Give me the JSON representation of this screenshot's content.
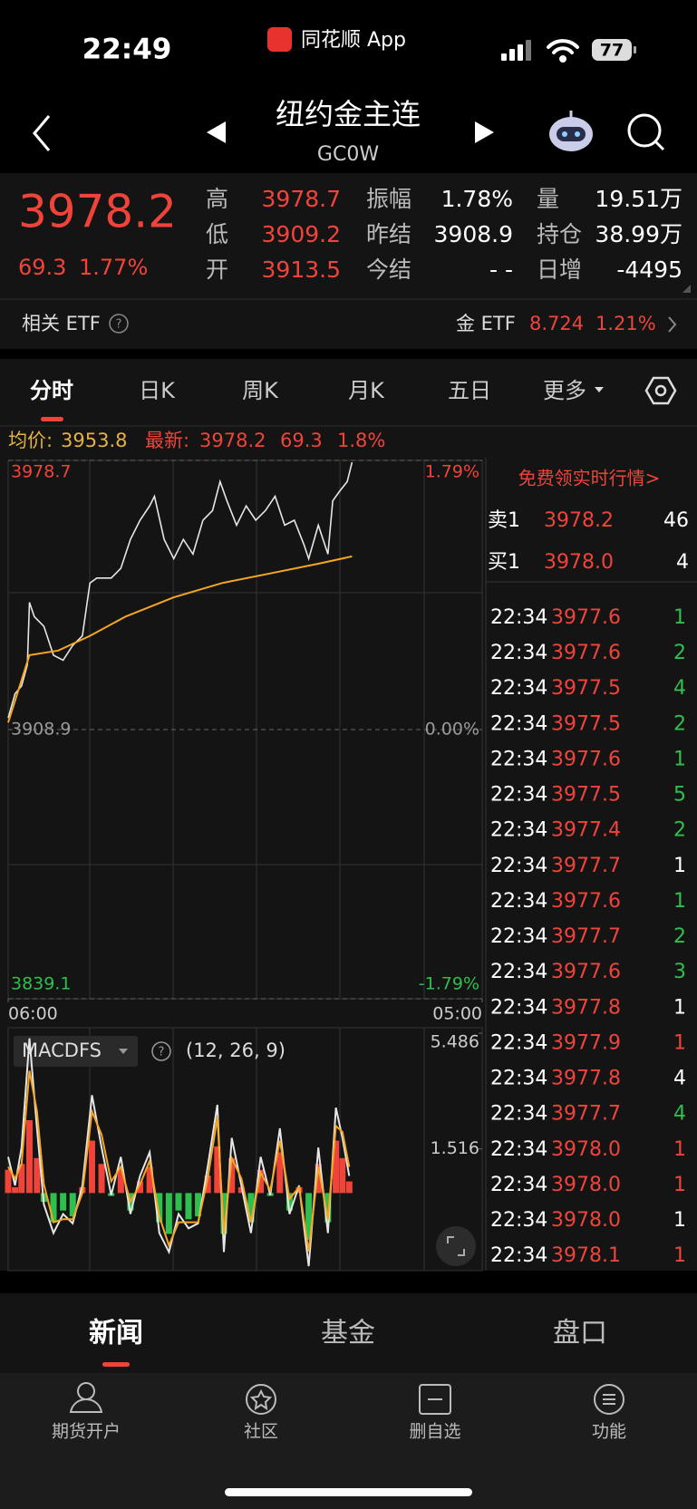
{
  "status_bar": {
    "time": "22:49",
    "app": "同花顺 App",
    "battery": "77"
  },
  "header": {
    "title": "纽约金主连",
    "code": "GC0W"
  },
  "quote": {
    "price": "3978.2",
    "change": "69.3",
    "change_pct": "1.77%",
    "stats": [
      [
        {
          "label": "高",
          "value": "3978.7"
        },
        {
          "label": "振幅",
          "value": "1.78%"
        },
        {
          "label": "量",
          "value": "19.51万"
        }
      ],
      [
        {
          "label": "低",
          "value": "3909.2"
        },
        {
          "label": "昨结",
          "value": "3908.9"
        },
        {
          "label": "持仓",
          "value": "38.99万"
        }
      ],
      [
        {
          "label": "开",
          "value": "3913.5"
        },
        {
          "label": "今结",
          "value": "- -"
        },
        {
          "label": "日增",
          "value": "-4495"
        }
      ]
    ]
  },
  "etf": {
    "label": "相关 ETF",
    "name": "金 ETF",
    "price": "8.724",
    "change_pct": "1.21%"
  },
  "tabs": [
    "分时",
    "日K",
    "周K",
    "月K",
    "五日",
    "更多"
  ],
  "summary": {
    "avg_label": "均价:",
    "avg": "3953.8",
    "latest_label": "最新:",
    "latest": "3978.2",
    "change": "69.3",
    "change_pct": "1.8%"
  },
  "chart_data": [
    {
      "type": "line",
      "xlim": [
        0,
        1380
      ],
      "xticks": [
        {
          "value": 0,
          "label": "06:00"
        },
        {
          "value": 1380,
          "label": "05:00"
        }
      ],
      "ylim": [
        3839.1,
        3978.7
      ],
      "yticks": [
        3839.1,
        3908.9,
        3978.7
      ],
      "y2lim": [
        -1.79,
        1.79
      ],
      "y2ticks": [
        {
          "value": -1.79,
          "label": "-1.79%"
        },
        {
          "value": 0,
          "label": "0.00%"
        },
        {
          "value": 1.79,
          "label": "1.79%"
        }
      ],
      "series": [
        {
          "color": "#e6e6e6",
          "x": [
            0,
            20,
            39,
            56,
            62,
            76,
            104,
            132,
            160,
            188,
            216,
            238,
            258,
            300,
            328,
            356,
            384,
            412,
            426,
            454,
            482,
            510,
            538,
            567,
            595,
            617,
            637,
            665,
            693,
            721,
            749,
            777,
            805,
            833,
            861,
            875,
            903,
            931,
            945,
            965,
            987,
            1001
          ],
          "values": [
            3911.9,
            3918.2,
            3920.2,
            3925.7,
            3941.9,
            3938.2,
            3935.7,
            3928.2,
            3926.9,
            3930.7,
            3933.2,
            3946.9,
            3948.2,
            3948.2,
            3950.7,
            3958.2,
            3963.2,
            3966.9,
            3969.4,
            3958.2,
            3953.2,
            3958.2,
            3954.4,
            3963.2,
            3965.7,
            3973.2,
            3968.2,
            3961.9,
            3966.9,
            3963.2,
            3965.7,
            3969.4,
            3961.9,
            3963.2,
            3956.9,
            3953.2,
            3961.9,
            3954.4,
            3968.2,
            3970.7,
            3973.2,
            3978.2
          ]
        },
        {
          "color": "#f5a623",
          "x": [
            0,
            62,
            146,
            238,
            342,
            482,
            623,
            763,
            903,
            1001
          ],
          "values": [
            3910.7,
            3928.2,
            3929.4,
            3933.2,
            3938.2,
            3943.2,
            3946.9,
            3949.4,
            3951.9,
            3953.8
          ]
        }
      ]
    },
    {
      "type": "macd",
      "title": "MACDFS",
      "subtitle": "(12, 26, 9)",
      "xlim": [
        0,
        1380
      ],
      "ylim": [
        -2.6,
        5.486
      ],
      "yticks": [
        5.486,
        1.516
      ],
      "x": [
        0,
        20,
        39,
        62,
        84,
        104,
        132,
        160,
        188,
        216,
        244,
        272,
        300,
        328,
        356,
        384,
        412,
        440,
        468,
        496,
        525,
        553,
        581,
        609,
        628,
        651,
        679,
        707,
        735,
        763,
        791,
        819,
        847,
        875,
        903,
        931,
        954,
        973,
        993
      ],
      "series": [
        {
          "color": "#e6e6e6",
          "values": [
            1.24,
            0.26,
            1.56,
            5.31,
            2.22,
            -0.39,
            -1.37,
            -0.72,
            -1.04,
            0.26,
            3.36,
            1.56,
            -0.07,
            1.24,
            -0.72,
            0.59,
            1.4,
            -1.37,
            -2.02,
            -0.72,
            -1.21,
            -1.04,
            0.91,
            3.03,
            -2.02,
            1.89,
            0.26,
            -1.37,
            1.24,
            -0.07,
            2.22,
            -0.72,
            0.26,
            -2.51,
            1.56,
            -1.37,
            2.93,
            1.89,
            0.59
          ]
        },
        {
          "color": "#f5a623",
          "values": [
            0.9,
            0.5,
            1.0,
            4.2,
            2.8,
            0.3,
            -1.0,
            -0.9,
            -0.9,
            0.0,
            2.8,
            2.0,
            0.4,
            0.9,
            -0.3,
            0.3,
            1.1,
            -0.8,
            -1.8,
            -1.0,
            -1.0,
            -1.0,
            0.5,
            2.6,
            -1.4,
            1.2,
            0.5,
            -1.0,
            0.7,
            0.1,
            1.8,
            -0.2,
            0.2,
            -2.0,
            0.9,
            -0.9,
            2.3,
            2.1,
            0.9
          ]
        }
      ],
      "histogram": {
        "colors": [
          "#f0443b",
          "#2fbf4e"
        ],
        "values": [
          0.8,
          0.2,
          1.0,
          2.5,
          1.2,
          -0.3,
          -1.0,
          -0.6,
          -0.8,
          0.2,
          1.8,
          1.0,
          -0.1,
          0.8,
          -0.6,
          0.4,
          0.9,
          -1.0,
          -1.4,
          -0.6,
          -0.9,
          -0.8,
          0.6,
          1.6,
          -1.4,
          1.2,
          0.2,
          -1.0,
          0.8,
          -0.1,
          1.4,
          -0.6,
          0.2,
          -1.6,
          1.0,
          -1.0,
          1.8,
          1.2,
          0.4
        ]
      }
    }
  ],
  "order_book": {
    "promo": "免费领实时行情>",
    "asks": [
      {
        "label": "卖1",
        "price": "3978.2",
        "volume": "46"
      }
    ],
    "bids": [
      {
        "label": "买1",
        "price": "3978.0",
        "volume": "4"
      }
    ]
  },
  "trades": [
    {
      "time": "22:34",
      "price": "3977.6",
      "volume": "1",
      "color": "#2fbf4e"
    },
    {
      "time": "22:34",
      "price": "3977.6",
      "volume": "2",
      "color": "#2fbf4e"
    },
    {
      "time": "22:34",
      "price": "3977.5",
      "volume": "4",
      "color": "#2fbf4e"
    },
    {
      "time": "22:34",
      "price": "3977.5",
      "volume": "2",
      "color": "#2fbf4e"
    },
    {
      "time": "22:34",
      "price": "3977.6",
      "volume": "1",
      "color": "#2fbf4e"
    },
    {
      "time": "22:34",
      "price": "3977.5",
      "volume": "5",
      "color": "#2fbf4e"
    },
    {
      "time": "22:34",
      "price": "3977.4",
      "volume": "2",
      "color": "#2fbf4e"
    },
    {
      "time": "22:34",
      "price": "3977.7",
      "volume": "1",
      "color": "#ffffff"
    },
    {
      "time": "22:34",
      "price": "3977.6",
      "volume": "1",
      "color": "#2fbf4e"
    },
    {
      "time": "22:34",
      "price": "3977.7",
      "volume": "2",
      "color": "#2fbf4e"
    },
    {
      "time": "22:34",
      "price": "3977.6",
      "volume": "3",
      "color": "#2fbf4e"
    },
    {
      "time": "22:34",
      "price": "3977.8",
      "volume": "1",
      "color": "#ffffff"
    },
    {
      "time": "22:34",
      "price": "3977.9",
      "volume": "1",
      "color": "#f0443b"
    },
    {
      "time": "22:34",
      "price": "3977.8",
      "volume": "4",
      "color": "#ffffff"
    },
    {
      "time": "22:34",
      "price": "3977.7",
      "volume": "4",
      "color": "#2fbf4e"
    },
    {
      "time": "22:34",
      "price": "3978.0",
      "volume": "1",
      "color": "#f0443b"
    },
    {
      "time": "22:34",
      "price": "3978.0",
      "volume": "1",
      "color": "#f0443b"
    },
    {
      "time": "22:34",
      "price": "3978.0",
      "volume": "1",
      "color": "#ffffff"
    },
    {
      "time": "22:34",
      "price": "3978.1",
      "volume": "1",
      "color": "#f0443b"
    }
  ],
  "bottom_tabs": [
    "新闻",
    "基金",
    "盘口"
  ],
  "nav": [
    "期货开户",
    "社区",
    "删自选",
    "功能"
  ]
}
